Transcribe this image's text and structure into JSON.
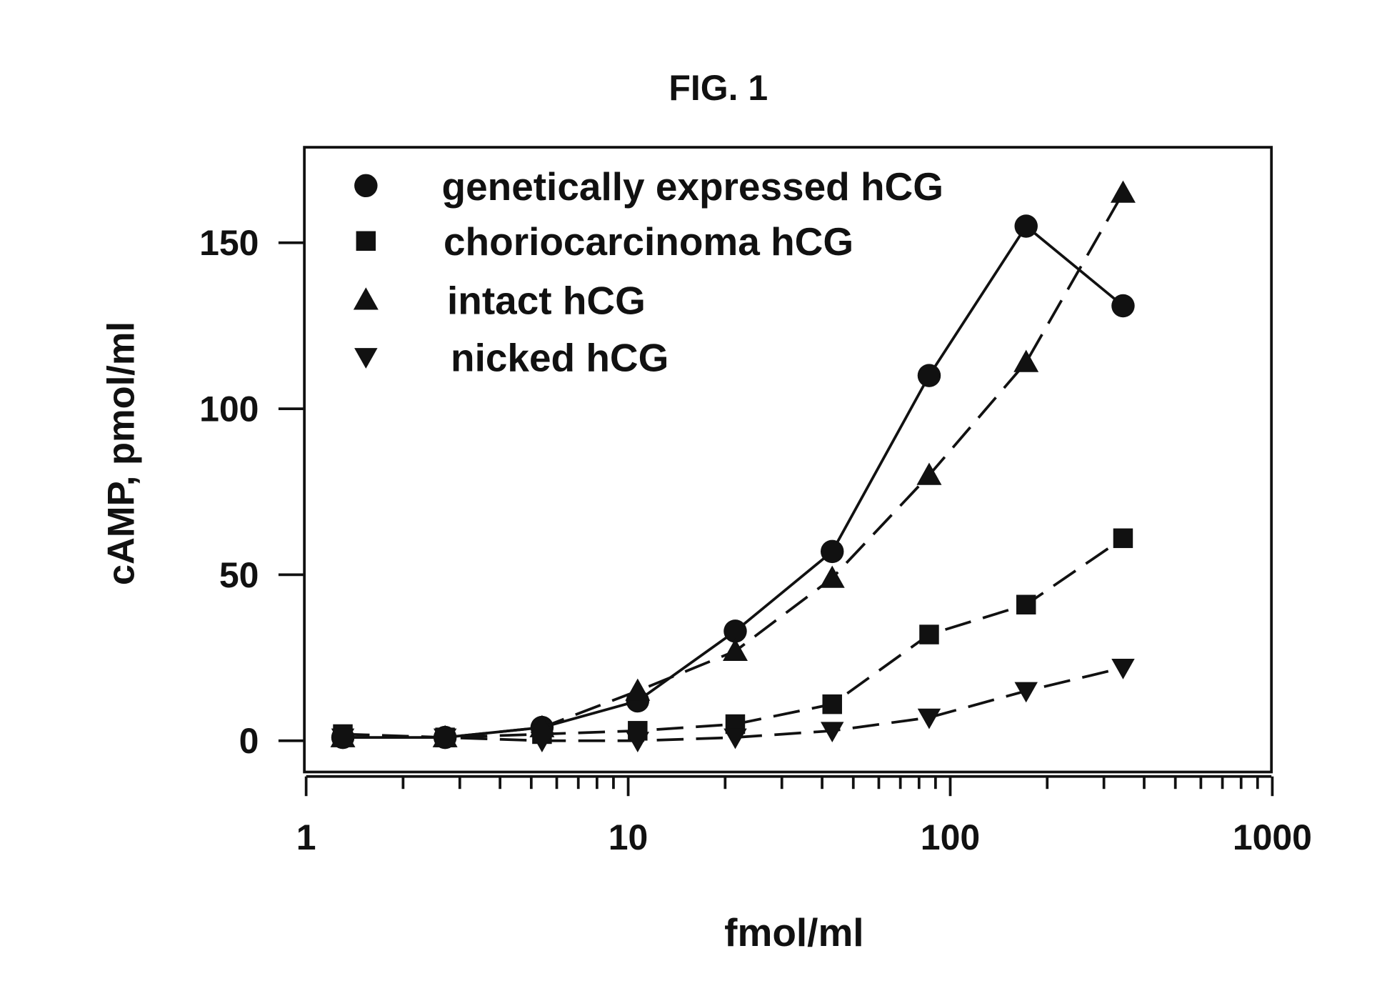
{
  "chart_data": {
    "type": "line",
    "title": "FIG. 1",
    "xlabel": "fmol/ml",
    "ylabel": "cAMP, pmol/ml",
    "xscale": "log",
    "xlim": [
      1,
      1000
    ],
    "ylim": [
      -10,
      177
    ],
    "xticks": [
      1,
      10,
      100,
      1000
    ],
    "xtick_labels": [
      "1",
      "10",
      "100",
      "1000"
    ],
    "yticks": [
      0,
      50,
      100,
      150
    ],
    "ytick_labels": [
      "0",
      "50",
      "100",
      "150"
    ],
    "grid": false,
    "legend_placement": "top-left",
    "x": [
      1.3,
      2.7,
      5.4,
      10.7,
      21.5,
      43,
      86,
      172,
      344
    ],
    "series": [
      {
        "name": "genetically expressed hCG",
        "marker": "circle",
        "line": "solid",
        "values": [
          1,
          1,
          4,
          12,
          33,
          57,
          110,
          155,
          131
        ]
      },
      {
        "name": "choriocarcinoma hCG",
        "marker": "square",
        "line": "dashed",
        "values": [
          2,
          1,
          2,
          3,
          5,
          11,
          32,
          41,
          61
        ]
      },
      {
        "name": "intact hCG",
        "marker": "triangle-up",
        "line": "dashed",
        "values": [
          1,
          1,
          4,
          15,
          27,
          49,
          80,
          114,
          165
        ]
      },
      {
        "name": "nicked hCG",
        "marker": "triangle-down",
        "line": "dashed",
        "values": [
          1,
          1,
          0,
          0,
          1,
          3,
          7,
          15,
          22
        ]
      }
    ],
    "colors": {
      "ink": "#111111",
      "background": "#ffffff"
    }
  }
}
